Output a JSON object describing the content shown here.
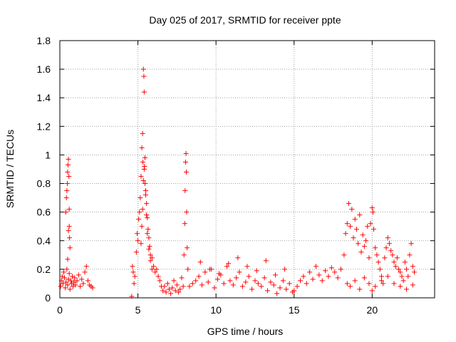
{
  "chart_data": {
    "type": "scatter",
    "title": "Day 025 of 2017, SRMTID for receiver ppte",
    "xlabel": "GPS time / hours",
    "ylabel": "SRMTID / TECUs",
    "xlim": [
      0,
      24
    ],
    "ylim": [
      0,
      1.8
    ],
    "xticks": [
      0,
      5,
      10,
      15,
      20
    ],
    "yticks": [
      0,
      0.2,
      0.4,
      0.6,
      0.8,
      1,
      1.2,
      1.4,
      1.6,
      1.8
    ],
    "grid": true,
    "marker": "plus",
    "color": "#ff0000",
    "series": [
      {
        "name": "SRMTID",
        "x": [
          0.05,
          0.1,
          0.15,
          0.2,
          0.25,
          0.3,
          0.35,
          0.4,
          0.45,
          0.5,
          0.55,
          0.6,
          0.65,
          0.7,
          0.75,
          0.8,
          0.85,
          0.9,
          0.95,
          1.0,
          1.1,
          1.2,
          1.3,
          1.4,
          1.5,
          1.6,
          1.7,
          1.8,
          1.9,
          2.0,
          2.1,
          0.38,
          0.42,
          0.45,
          0.48,
          0.5,
          0.52,
          0.55,
          0.58,
          0.6,
          0.62,
          0.65,
          0.5,
          0.55,
          0.6,
          4.6,
          4.65,
          4.7,
          4.75,
          4.8,
          4.9,
          4.95,
          5.0,
          5.05,
          5.1,
          5.15,
          5.2,
          5.25,
          5.3,
          5.32,
          5.35,
          5.38,
          5.4,
          5.42,
          5.45,
          5.5,
          5.55,
          5.6,
          5.65,
          5.7,
          5.75,
          5.8,
          5.9,
          6.0,
          6.1,
          6.2,
          6.3,
          6.4,
          6.5,
          5.2,
          5.25,
          5.3,
          5.35,
          5.4,
          5.45,
          5.5,
          5.55,
          5.6,
          5.7,
          5.8,
          5.9,
          6.6,
          6.7,
          6.8,
          6.9,
          7.0,
          7.1,
          7.2,
          7.3,
          7.4,
          7.5,
          7.6,
          7.7,
          7.8,
          7.9,
          7.95,
          8.0,
          8.02,
          8.05,
          8.08,
          8.1,
          8.12,
          8.15,
          8.2,
          8.3,
          8.5,
          8.7,
          8.9,
          9.1,
          9.3,
          9.5,
          9.7,
          9.9,
          10.1,
          10.3,
          10.5,
          10.7,
          10.9,
          11.1,
          11.3,
          11.5,
          11.7,
          11.9,
          12.1,
          12.3,
          12.5,
          12.7,
          12.9,
          13.1,
          13.3,
          13.5,
          13.7,
          13.9,
          14.1,
          14.3,
          14.5,
          14.7,
          14.9,
          9.0,
          9.6,
          10.2,
          10.8,
          11.4,
          12.0,
          12.6,
          13.2,
          13.8,
          14.4,
          15.0,
          15.2,
          15.4,
          15.6,
          15.8,
          16.0,
          16.2,
          16.4,
          16.6,
          16.8,
          17.0,
          17.2,
          17.4,
          17.6,
          17.8,
          18.0,
          18.2,
          18.3,
          18.4,
          18.5,
          18.6,
          18.7,
          18.8,
          18.9,
          19.0,
          19.1,
          19.2,
          19.3,
          19.4,
          19.5,
          19.6,
          19.7,
          19.8,
          19.9,
          20.0,
          20.05,
          20.1,
          20.2,
          20.3,
          20.4,
          20.5,
          20.6,
          20.7,
          20.8,
          20.9,
          21.0,
          21.1,
          21.2,
          21.3,
          21.4,
          21.5,
          21.6,
          21.7,
          21.8,
          21.9,
          22.0,
          22.1,
          22.2,
          22.3,
          22.4,
          22.5,
          22.6,
          22.7,
          18.4,
          18.6,
          18.9,
          19.2,
          19.5,
          19.8,
          20.0,
          20.2,
          20.6,
          21.0,
          21.4,
          21.8,
          22.2,
          22.6
        ],
        "y": [
          0.08,
          0.12,
          0.15,
          0.1,
          0.18,
          0.14,
          0.07,
          0.11,
          0.2,
          0.09,
          0.13,
          0.17,
          0.06,
          0.12,
          0.1,
          0.15,
          0.08,
          0.11,
          0.14,
          0.09,
          0.12,
          0.16,
          0.08,
          0.13,
          0.1,
          0.18,
          0.22,
          0.12,
          0.09,
          0.08,
          0.07,
          0.6,
          0.7,
          0.75,
          0.8,
          0.88,
          0.93,
          0.97,
          0.85,
          0.5,
          0.42,
          0.35,
          0.27,
          0.47,
          0.62,
          0.01,
          0.22,
          0.18,
          0.1,
          0.15,
          0.32,
          0.45,
          0.4,
          0.55,
          0.6,
          0.7,
          0.85,
          1.05,
          1.15,
          0.95,
          1.6,
          1.55,
          1.44,
          0.92,
          0.8,
          0.75,
          0.66,
          0.56,
          0.48,
          0.42,
          0.36,
          0.3,
          0.28,
          0.22,
          0.18,
          0.2,
          0.15,
          0.12,
          0.08,
          0.38,
          0.5,
          0.62,
          0.82,
          0.9,
          0.98,
          0.72,
          0.58,
          0.45,
          0.34,
          0.26,
          0.2,
          0.05,
          0.08,
          0.04,
          0.1,
          0.06,
          0.03,
          0.07,
          0.12,
          0.05,
          0.09,
          0.04,
          0.06,
          0.14,
          0.08,
          0.3,
          0.52,
          0.75,
          0.95,
          1.01,
          0.88,
          0.6,
          0.35,
          0.2,
          0.08,
          0.1,
          0.12,
          0.15,
          0.09,
          0.18,
          0.11,
          0.2,
          0.07,
          0.13,
          0.16,
          0.1,
          0.22,
          0.12,
          0.09,
          0.14,
          0.18,
          0.08,
          0.11,
          0.15,
          0.06,
          0.12,
          0.1,
          0.08,
          0.14,
          0.05,
          0.11,
          0.09,
          0.03,
          0.07,
          0.12,
          0.06,
          0.1,
          0.04,
          0.25,
          0.2,
          0.17,
          0.24,
          0.28,
          0.22,
          0.19,
          0.26,
          0.16,
          0.2,
          0.05,
          0.08,
          0.12,
          0.15,
          0.1,
          0.18,
          0.13,
          0.22,
          0.16,
          0.12,
          0.19,
          0.15,
          0.21,
          0.18,
          0.14,
          0.2,
          0.3,
          0.45,
          0.52,
          0.66,
          0.5,
          0.62,
          0.42,
          0.55,
          0.48,
          0.38,
          0.58,
          0.32,
          0.44,
          0.36,
          0.4,
          0.5,
          0.28,
          0.52,
          0.63,
          0.6,
          0.48,
          0.35,
          0.3,
          0.25,
          0.2,
          0.15,
          0.1,
          0.28,
          0.35,
          0.42,
          0.38,
          0.33,
          0.3,
          0.25,
          0.22,
          0.28,
          0.2,
          0.18,
          0.15,
          0.12,
          0.25,
          0.2,
          0.15,
          0.3,
          0.38,
          0.22,
          0.18,
          0.1,
          0.08,
          0.12,
          0.06,
          0.14,
          0.1,
          0.05,
          0.08,
          0.12,
          0.15,
          0.1,
          0.08,
          0.06,
          0.09
        ]
      }
    ]
  }
}
